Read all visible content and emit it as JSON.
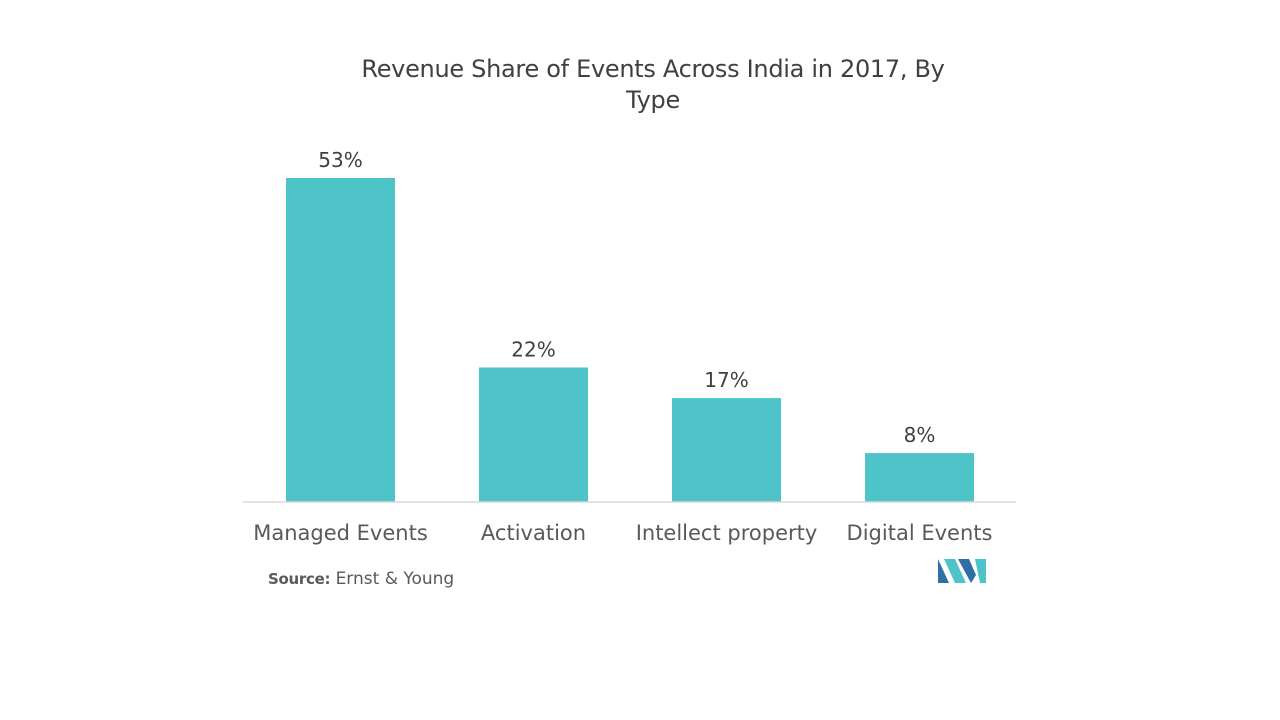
{
  "chart_data": {
    "type": "bar",
    "title": "Revenue Share of Events Across India in 2017, By Type",
    "categories": [
      "Managed Events",
      "Activation",
      "Intellect property",
      "Digital Events"
    ],
    "values": [
      53,
      22,
      17,
      8
    ],
    "data_labels": [
      "53%",
      "22%",
      "17%",
      "8%"
    ],
    "unit": "%",
    "xlabel": "",
    "ylabel": "",
    "ylim": [
      0,
      53
    ],
    "grid": false,
    "legend": "none",
    "bar_color": "#4fc4c8",
    "axis_color": "#d9d9d9"
  },
  "source": {
    "prefix": "Source:",
    "text": "Ernst & Young"
  },
  "logo": {
    "icon": "mordor-intelligence-logo",
    "colors": [
      "#2f6fa6",
      "#4fc4c8"
    ]
  }
}
